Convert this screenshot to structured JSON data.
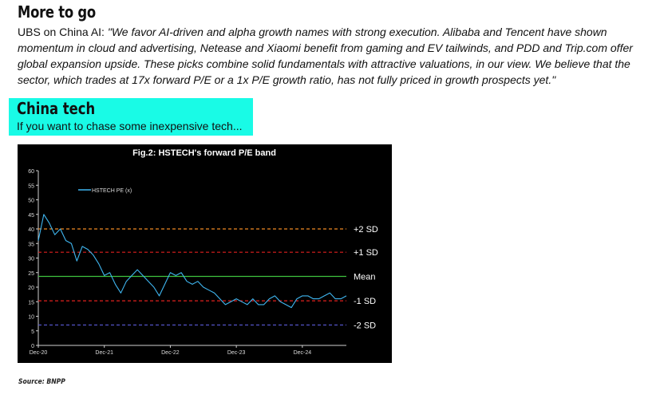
{
  "section1": {
    "heading": "More to go",
    "lead": "UBS on China AI: ",
    "quote": "\"We favor AI-driven and alpha growth names with strong execution. Alibaba and Tencent have shown momentum in cloud and advertising, Netease and Xiaomi benefit from gaming and EV tailwinds, and PDD and Trip.com offer global expansion upside. These picks combine solid fundamentals with attractive valuations, in our view. We believe that the sector, which trades at 17x forward P/E or a 1x P/E growth ratio, has not fully priced in growth prospects yet.\""
  },
  "section2": {
    "heading": "China tech",
    "subheading": "If you want to chase some inexpensive tech..."
  },
  "source": "Source: BNPP",
  "chart_data": {
    "type": "line",
    "title": "Fig.2: HSTECH's forward P/E band",
    "xlabel": "",
    "ylabel": "",
    "ylim": [
      0,
      60
    ],
    "yticks": [
      0,
      5,
      10,
      15,
      20,
      25,
      30,
      35,
      40,
      45,
      50,
      55,
      60
    ],
    "xlim": [
      "2020-12",
      "2025-08"
    ],
    "xticks": [
      "Dec-20",
      "Dec-21",
      "Dec-22",
      "Dec-23",
      "Dec-24"
    ],
    "xtick_dates": [
      "2020-12",
      "2021-12",
      "2022-12",
      "2023-12",
      "2024-12"
    ],
    "grid": false,
    "legend": "top-left",
    "background": "#000000",
    "series": [
      {
        "name": "HSTECH PE (x)",
        "color": "#3fb6f0",
        "x": [
          "2020-12",
          "2021-01",
          "2021-02",
          "2021-03",
          "2021-04",
          "2021-05",
          "2021-06",
          "2021-07",
          "2021-08",
          "2021-09",
          "2021-10",
          "2021-11",
          "2021-12",
          "2022-01",
          "2022-02",
          "2022-03",
          "2022-04",
          "2022-05",
          "2022-06",
          "2022-07",
          "2022-08",
          "2022-09",
          "2022-10",
          "2022-11",
          "2022-12",
          "2023-01",
          "2023-02",
          "2023-03",
          "2023-04",
          "2023-05",
          "2023-06",
          "2023-07",
          "2023-08",
          "2023-09",
          "2023-10",
          "2023-11",
          "2023-12",
          "2024-01",
          "2024-02",
          "2024-03",
          "2024-04",
          "2024-05",
          "2024-06",
          "2024-07",
          "2024-08",
          "2024-09",
          "2024-10",
          "2024-11",
          "2024-12",
          "2025-01",
          "2025-02",
          "2025-03",
          "2025-04",
          "2025-05",
          "2025-06",
          "2025-07",
          "2025-08"
        ],
        "values": [
          36,
          45,
          42,
          38,
          40,
          36,
          35,
          29,
          34,
          33,
          31,
          28,
          24,
          25,
          21,
          18,
          22,
          24,
          26,
          24,
          22,
          20,
          17,
          21,
          25,
          24,
          25,
          22,
          21,
          22,
          20,
          19,
          18,
          16,
          14,
          15,
          16,
          15,
          14,
          16,
          14,
          14,
          16,
          17,
          15,
          14,
          13,
          16,
          17,
          17,
          16,
          16,
          17,
          18,
          16,
          16,
          17
        ]
      }
    ],
    "bands": [
      {
        "label": "+2 SD",
        "value": 40,
        "color": "#f08a24",
        "style": "dashed"
      },
      {
        "label": "+1 SD",
        "value": 32,
        "color": "#e0201e",
        "style": "dashed"
      },
      {
        "label": "Mean",
        "value": 23.7,
        "color": "#3ec43e",
        "style": "solid"
      },
      {
        "label": "-1 SD",
        "value": 15.3,
        "color": "#e0201e",
        "style": "dashed"
      },
      {
        "label": "-2 SD",
        "value": 7,
        "color": "#5a5ad6",
        "style": "dashed"
      }
    ]
  }
}
